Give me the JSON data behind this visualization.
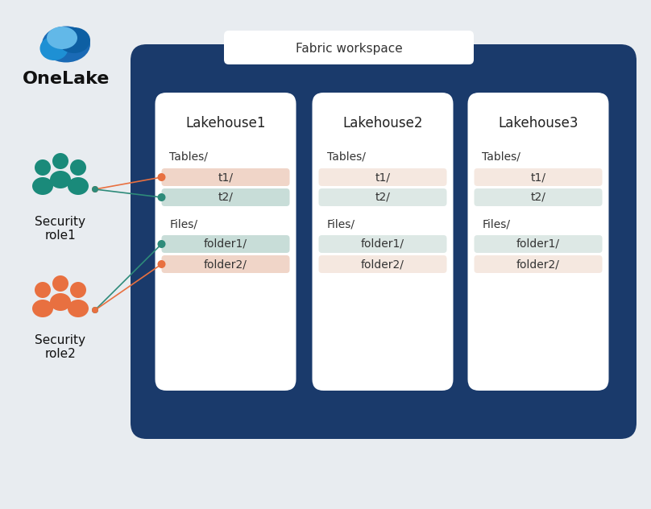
{
  "bg_color": "#e8ecf0",
  "fabric_bg": "#1a3a6b",
  "fabric_label": "Fabric workspace",
  "lakehouse_titles": [
    "Lakehouse1",
    "Lakehouse2",
    "Lakehouse3"
  ],
  "card_bg": "#ffffff",
  "teal_color": "#2e8b7a",
  "orange_color": "#e87040",
  "t1_color": "#f0d5c8",
  "t2_color": "#c8ddd8",
  "folder1_color": "#c8ddd8",
  "folder2_color": "#f0d5c8",
  "role1_color": "#1a8a7a",
  "role2_color": "#e87040",
  "onelake_text": "OneLake",
  "role1_text": "Security\nrole1",
  "role2_text": "Security\nrole2"
}
